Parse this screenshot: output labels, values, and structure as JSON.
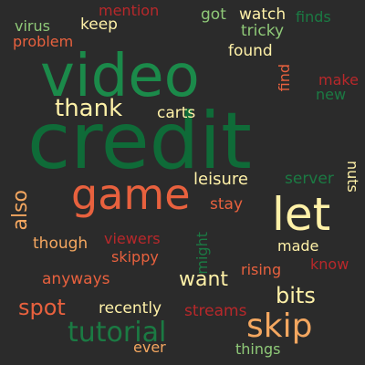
{
  "background": "#2b2b2b",
  "palette": {
    "dark_green": "#1b7a43",
    "orange_red": "#e8613e",
    "cream": "#fff1a8",
    "light_green": "#8fc978",
    "peach": "#f4a760",
    "red": "#b8282b"
  },
  "words": {
    "credit": "credit",
    "video": "video",
    "game": "game",
    "let": "let",
    "skip": "skip",
    "tutorial": "tutorial",
    "thank": "thank",
    "bits": "bits",
    "spot": "spot",
    "want": "want",
    "also": "also",
    "leisure": "leisure",
    "server": "server",
    "carts": "carts",
    "found": "found",
    "tricky": "tricky",
    "watch": "watch",
    "got": "got",
    "keep": "keep",
    "virus": "virus",
    "problem": "problem",
    "mention": "mention",
    "finds": "finds",
    "find": "find",
    "make": "make",
    "new": "new",
    "nuts": "nuts",
    "stay": "stay",
    "might": "might",
    "viewers": "viewers",
    "skippy": "skippy",
    "though": "though",
    "made": "made",
    "know": "know",
    "rising": "rising",
    "anyways": "anyways",
    "recently": "recently",
    "streams": "streams",
    "ever": "ever",
    "things": "things"
  }
}
